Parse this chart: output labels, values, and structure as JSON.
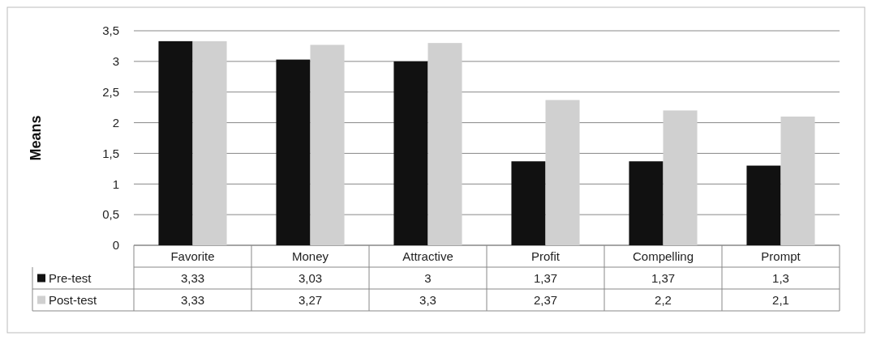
{
  "chart_data": {
    "type": "bar",
    "ylabel": "Means",
    "categories": [
      "Favorite",
      "Money",
      "Attractive",
      "Profit",
      "Compelling",
      "Prompt"
    ],
    "series": [
      {
        "name": "Pre-test",
        "color": "#111111",
        "values": [
          3.33,
          3.03,
          3,
          1.37,
          1.37,
          1.3
        ],
        "value_labels": [
          "3,33",
          "3,03",
          "3",
          "1,37",
          "1,37",
          "1,3"
        ]
      },
      {
        "name": "Post-test",
        "color": "#d0d0d0",
        "values": [
          3.33,
          3.27,
          3.3,
          2.37,
          2.2,
          2.1
        ],
        "value_labels": [
          "3,33",
          "3,27",
          "3,3",
          "2,37",
          "2,2",
          "2,1"
        ]
      }
    ],
    "ylim": [
      0,
      3.5
    ],
    "yticks": [
      {
        "value": 0,
        "label": "0"
      },
      {
        "value": 0.5,
        "label": "0,5"
      },
      {
        "value": 1,
        "label": "1"
      },
      {
        "value": 1.5,
        "label": "1,5"
      },
      {
        "value": 2,
        "label": "2"
      },
      {
        "value": 2.5,
        "label": "2,5"
      },
      {
        "value": 3,
        "label": "3"
      },
      {
        "value": 3.5,
        "label": "3,5"
      }
    ],
    "grid": "y",
    "legend": "bottom"
  }
}
